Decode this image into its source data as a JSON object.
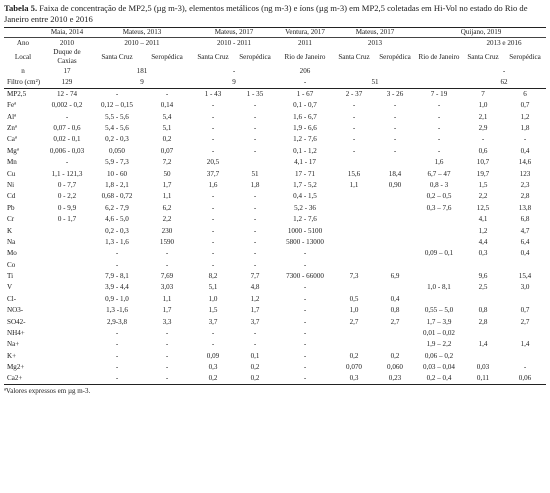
{
  "caption": {
    "label": "Tabela 5.",
    "text": " Faixa de concentração de MP2,5 (µg m-3), elementos metálicos (ng m-3) e íons (µg m-3) em MP2,5 coletadas em Hi-Vol no estado do Rio de Janeiro entre 2010 e 2016"
  },
  "header": {
    "studies": [
      "Maia, 2014",
      "Mateus, 2013",
      "Mateus, 2017",
      "Ventura, 2017",
      "Mateus, 2017",
      "Quijano, 2019"
    ],
    "ano_label": "Ano",
    "years": [
      "2010",
      "2010 – 2011",
      "2010 - 2011",
      "2011",
      "2013",
      "2013 e 2016"
    ],
    "local_label": "Local",
    "locals": [
      "Duque de Caxias",
      "Santa Cruz",
      "Seropédica",
      "Santa Cruz",
      "Seropédica",
      "Rio de Janeiro",
      "Santa Cruz",
      "Seropédica",
      "Rio de Janeiro",
      "Santa Cruz",
      "Seropédica"
    ],
    "n_label": "n",
    "n_values": [
      "17",
      "181",
      "-",
      "206",
      "",
      "-"
    ],
    "filtro_label": "Filtro (cm²)",
    "filtro_values": [
      "129",
      "9",
      "9",
      "-",
      "51",
      "62"
    ]
  },
  "rows": [
    {
      "label": "MP2,5",
      "values": [
        "12 - 74",
        "-",
        "-",
        "1 - 43",
        "1 - 35",
        "1 - 67",
        "2 - 37",
        "3 - 26",
        "7 - 19",
        "7",
        "6"
      ]
    },
    {
      "label": "Feª",
      "values": [
        "0,002 - 0,2",
        "0,12 – 0,15",
        "0,14",
        "-",
        "-",
        "0,1 - 0,7",
        "-",
        "-",
        "-",
        "1,0",
        "0,7"
      ]
    },
    {
      "label": "Alª",
      "values": [
        "-",
        "5,5 - 5,6",
        "5,4",
        "-",
        "-",
        "1,6 - 6,7",
        "-",
        "-",
        "-",
        "2,1",
        "1,2"
      ]
    },
    {
      "label": "Znª",
      "values": [
        "0,07 - 0,6",
        "5,4 - 5,6",
        "5,1",
        "-",
        "-",
        "1,9 - 6,6",
        "-",
        "-",
        "-",
        "2,9",
        "1,8"
      ]
    },
    {
      "label": "Caª",
      "values": [
        "0,02 - 0,1",
        "0,2 - 0,3",
        "0,2",
        "-",
        "-",
        "1,2 - 7,6",
        "-",
        "-",
        "-",
        "-",
        "-"
      ]
    },
    {
      "label": "Mgª",
      "values": [
        "0,006 - 0,03",
        "0,050",
        "0,07",
        "-",
        "-",
        "0,1 - 1,2",
        "-",
        "-",
        "-",
        "0,6",
        "0,4"
      ]
    },
    {
      "label": "Mn",
      "values": [
        "-",
        "5,9 - 7,3",
        "7,2",
        "20,5",
        "",
        "4,1 - 17",
        "",
        "",
        "1,6",
        "10,7",
        "14,6"
      ]
    },
    {
      "label": "Cu",
      "values": [
        "1,1 - 121,3",
        "10 - 60",
        "50",
        "37,7",
        "51",
        "17 - 71",
        "15,6",
        "18,4",
        "6,7 – 47",
        "19,7",
        "123"
      ]
    },
    {
      "label": "Ni",
      "values": [
        "0 - 7,7",
        "1,8 - 2,1",
        "1,7",
        "1,6",
        "1,8",
        "1,7 - 5,2",
        "1,1",
        "0,90",
        "0,8 - 3",
        "1,5",
        "2,3"
      ]
    },
    {
      "label": "Cd",
      "values": [
        "0 - 2,2",
        "0,68 - 0,72",
        "1,1",
        "-",
        "-",
        "0,4 - 1,5",
        "",
        "",
        "0,2 – 0,5",
        "2,2",
        "2,8"
      ]
    },
    {
      "label": "Pb",
      "values": [
        "0 - 9,9",
        "6,2 - 7,9",
        "6,2",
        "-",
        "-",
        "5,2 - 36",
        "",
        "",
        "0,3 – 7,6",
        "12,5",
        "13,8"
      ]
    },
    {
      "label": "Cr",
      "values": [
        "0 - 1,7",
        "4,6 - 5,0",
        "2,2",
        "-",
        "-",
        "1,2 - 7,6",
        "",
        "",
        "",
        "4,1",
        "6,8"
      ]
    },
    {
      "label": "K",
      "values": [
        "",
        "0,2 - 0,3",
        "230",
        "-",
        "-",
        "1000 - 5100",
        "",
        "",
        "",
        "1,2",
        "4,7"
      ]
    },
    {
      "label": "Na",
      "values": [
        "",
        "1,3 - 1,6",
        "1590",
        "-",
        "-",
        "5800 - 13000",
        "",
        "",
        "",
        "4,4",
        "6,4"
      ]
    },
    {
      "label": "Mo",
      "values": [
        "",
        "-",
        "-",
        "-",
        "-",
        "-",
        "",
        "",
        "0,09 – 0,1",
        "0,3",
        "0,4"
      ]
    },
    {
      "label": "Co",
      "values": [
        "",
        "-",
        "-",
        "-",
        "-",
        "-",
        "",
        "",
        "",
        "",
        ""
      ]
    },
    {
      "label": "Ti",
      "values": [
        "",
        "7,9 - 8,1",
        "7,69",
        "8,2",
        "7,7",
        "7300 - 66000",
        "7,3",
        "6,9",
        "",
        "9,6",
        "15,4"
      ]
    },
    {
      "label": "V",
      "values": [
        "",
        "3,9 - 4,4",
        "3,03",
        "5,1",
        "4,8",
        "-",
        "",
        "",
        "1,0 - 8,1",
        "2,5",
        "3,0"
      ]
    },
    {
      "label": "Cl-",
      "values": [
        "",
        "0,9 - 1,0",
        "1,1",
        "1,0",
        "1,2",
        "-",
        "0,5",
        "0,4",
        "",
        "",
        ""
      ]
    },
    {
      "label": "NO3-",
      "values": [
        "",
        "1,3 -1,6",
        "1,7",
        "1,5",
        "1,7",
        "-",
        "1,0",
        "0,8",
        "0,55 – 5,0",
        "0,8",
        "0,7"
      ]
    },
    {
      "label": "SO42-",
      "values": [
        "",
        "2,9-3,8",
        "3,3",
        "3,7",
        "3,7",
        "-",
        "2,7",
        "2,7",
        "1,7 – 3,9",
        "2,8",
        "2,7"
      ]
    },
    {
      "label": "NH4+",
      "values": [
        "",
        "-",
        "-",
        "-",
        "-",
        "-",
        "",
        "",
        "0,01 – 0,02",
        "",
        ""
      ]
    },
    {
      "label": "Na+",
      "values": [
        "",
        "-",
        "-",
        "-",
        "-",
        "-",
        "",
        "",
        "1,9 – 2,2",
        "1,4",
        "1,4"
      ]
    },
    {
      "label": "K+",
      "values": [
        "",
        "-",
        "-",
        "0,09",
        "0,1",
        "-",
        "0,2",
        "0,2",
        "0,06 – 0,2",
        "",
        ""
      ]
    },
    {
      "label": "Mg2+",
      "values": [
        "",
        "-",
        "-",
        "0,3",
        "0,2",
        "-",
        "0,070",
        "0,060",
        "0,03 – 0,04",
        "0,03",
        "-"
      ]
    },
    {
      "label": "Ca2+",
      "values": [
        "",
        "-",
        "-",
        "0,2",
        "0,2",
        "-",
        "0,3",
        "0,23",
        "0,2 – 0,4",
        "0,11",
        "0,06"
      ]
    }
  ],
  "footnote": "ªValores expressos em µg m-3."
}
